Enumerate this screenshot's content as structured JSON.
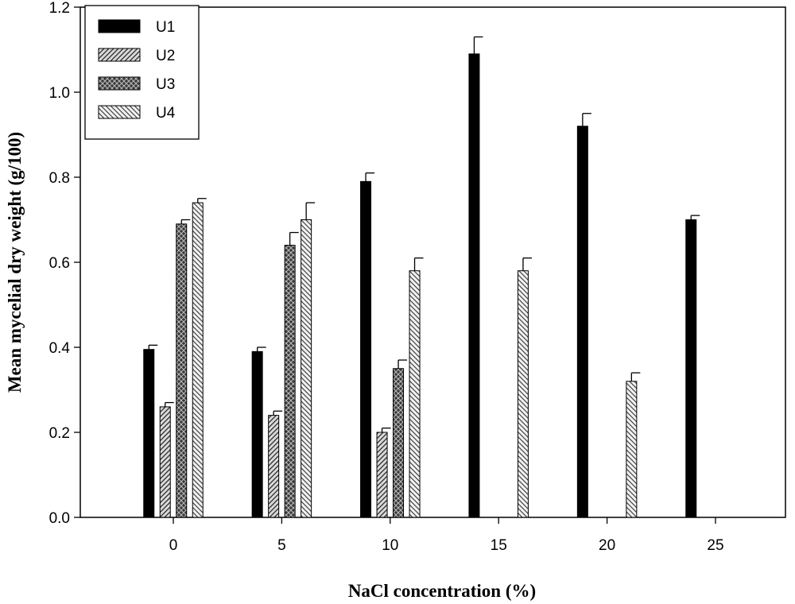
{
  "chart_data": {
    "type": "bar",
    "title": "",
    "xlabel": "NaCl concentration (%)",
    "ylabel": "Mean mycelial dry weight (g/100)",
    "categories": [
      "0",
      "5",
      "10",
      "15",
      "20",
      "25"
    ],
    "ylim": [
      0,
      1.2
    ],
    "yticks": [
      "0.0",
      "0.2",
      "0.4",
      "0.6",
      "0.8",
      "1.0",
      "1.2"
    ],
    "grid": false,
    "legend_position": "top-left",
    "series": [
      {
        "name": "U1",
        "fill": "solid-black",
        "values": [
          0.395,
          0.39,
          0.79,
          1.09,
          0.92,
          0.7
        ],
        "errors": [
          0.01,
          0.01,
          0.02,
          0.04,
          0.03,
          0.01
        ]
      },
      {
        "name": "U2",
        "fill": "diagonal-hatch-gray",
        "values": [
          0.26,
          0.24,
          0.2,
          null,
          null,
          null
        ],
        "errors": [
          0.01,
          0.01,
          0.01,
          null,
          null,
          null
        ]
      },
      {
        "name": "U3",
        "fill": "crosshatch-dark",
        "values": [
          0.69,
          0.64,
          0.35,
          null,
          null,
          null
        ],
        "errors": [
          0.01,
          0.03,
          0.02,
          null,
          null,
          null
        ]
      },
      {
        "name": "U4",
        "fill": "diagonal-hatch-light",
        "values": [
          0.74,
          0.7,
          0.58,
          0.58,
          0.32,
          null
        ],
        "errors": [
          0.01,
          0.04,
          0.03,
          0.03,
          0.02,
          null
        ]
      }
    ]
  }
}
